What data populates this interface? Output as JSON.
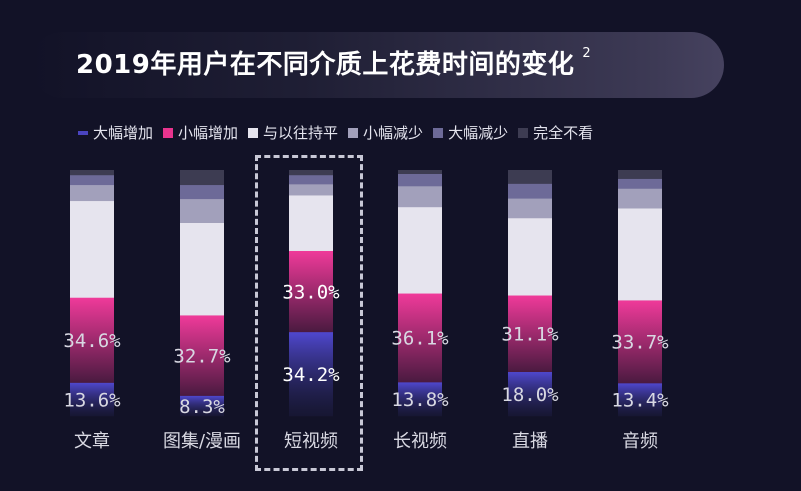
{
  "chart_data": {
    "type": "bar",
    "stacked": true,
    "title": "2019年用户在不同介质上花费时间的变化",
    "title_footnote": "2",
    "legend_position": "top",
    "categories": [
      "文章",
      "图集/漫画",
      "短视频",
      "长视频",
      "直播",
      "音频"
    ],
    "highlighted_category": "短视频",
    "ylim": [
      0,
      100
    ],
    "grid": false,
    "series": [
      {
        "name": "大幅增加",
        "color": "#4a44c0",
        "values": [
          13.6,
          8.3,
          34.2,
          13.8,
          18.0,
          13.4
        ],
        "labeled": true
      },
      {
        "name": "小幅增加",
        "color": "#e8348e",
        "values": [
          34.6,
          32.7,
          33.0,
          36.1,
          31.1,
          33.7
        ],
        "labeled": true
      },
      {
        "name": "与以往持平",
        "color": "#e6e4ee",
        "values": [
          39.3,
          37.6,
          22.6,
          35.1,
          31.4,
          37.4
        ],
        "labeled": false
      },
      {
        "name": "小幅减少",
        "color": "#a2a0bb",
        "values": [
          6.5,
          9.7,
          4.5,
          8.5,
          8.0,
          8.0
        ],
        "labeled": false
      },
      {
        "name": "大幅减少",
        "color": "#6d6a98",
        "values": [
          4.0,
          5.7,
          3.7,
          5.0,
          6.0,
          4.0
        ],
        "labeled": false
      },
      {
        "name": "完全不看",
        "color": "#3d3c52",
        "values": [
          2.0,
          6.0,
          2.0,
          1.5,
          5.5,
          3.5
        ],
        "labeled": false
      }
    ],
    "data_label_format": "{v}%"
  }
}
